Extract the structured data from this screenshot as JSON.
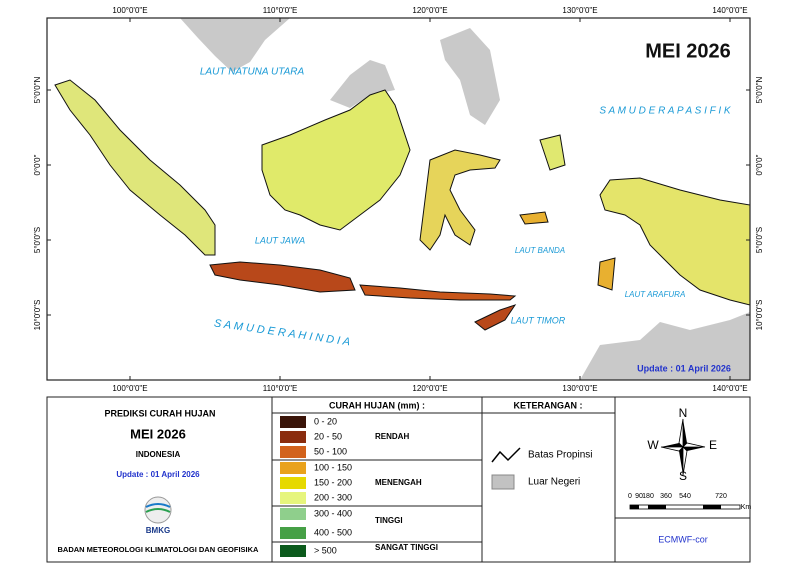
{
  "map": {
    "title": "MEI 2026",
    "update": "Update : 01 April  2026",
    "top_labels": [
      "100°0'0\"E",
      "110°0'0\"E",
      "120°0'0\"E",
      "130°0'0\"E",
      "140°0'0\"E"
    ],
    "bottom_labels": [
      "100°0'0\"E",
      "110°0'0\"E",
      "120°0'0\"E",
      "130°0'0\"E",
      "140°0'0\"E"
    ],
    "left_labels": [
      "5°0'0\"N",
      "0°0'0\"",
      "5°0'0\"S",
      "10°0'0\"S"
    ],
    "right_labels": [
      "5°0'0\"N",
      "0°0'0\"",
      "5°0'0\"S",
      "10°0'0\"S"
    ],
    "sea_labels": [
      "LAUT NATUNA UTARA",
      "S A M U D E R A   P A S I F I K",
      "LAUT JAWA",
      "LAUT BANDA",
      "LAUT ARAFURA",
      "LAUT TIMOR",
      "S A M U D E R A   H I N D I A"
    ]
  },
  "panel": {
    "title": "PREDIKSI CURAH HUJAN",
    "month": "MEI 2026",
    "region": "INDONESIA",
    "update": "Update : 01 April  2026",
    "logo": "BMKG",
    "agency": "BADAN METEOROLOGI KLIMATOLOGI DAN GEOFISIKA"
  },
  "legend": {
    "title": "CURAH HUJAN (mm) :",
    "classes": [
      {
        "label": "0 - 20",
        "color": "#3a1408"
      },
      {
        "label": "20 - 50",
        "color": "#8a2c0e"
      },
      {
        "label": "50 - 100",
        "color": "#d2621c"
      },
      {
        "label": "100 - 150",
        "color": "#e9a21c"
      },
      {
        "label": "150 - 200",
        "color": "#e6d900"
      },
      {
        "label": "200 - 300",
        "color": "#e6f57c"
      },
      {
        "label": "300 - 400",
        "color": "#8fcf8c"
      },
      {
        "label": "400 - 500",
        "color": "#46a046"
      },
      {
        "label": "> 500",
        "color": "#0b5a1c"
      }
    ],
    "groups": [
      "RENDAH",
      "MENENGAH",
      "TINGGI",
      "SANGAT TINGGI"
    ]
  },
  "keterangan": {
    "title": "KETERANGAN :",
    "items": [
      "Batas Propinsi",
      "Luar Negeri"
    ]
  },
  "compass": {
    "n": "N",
    "e": "E",
    "s": "S",
    "w": "W"
  },
  "scale": {
    "labels": [
      "0",
      "90",
      "180",
      "360",
      "540",
      "720"
    ],
    "unit": "Km"
  },
  "source": "ECMWF-cor"
}
